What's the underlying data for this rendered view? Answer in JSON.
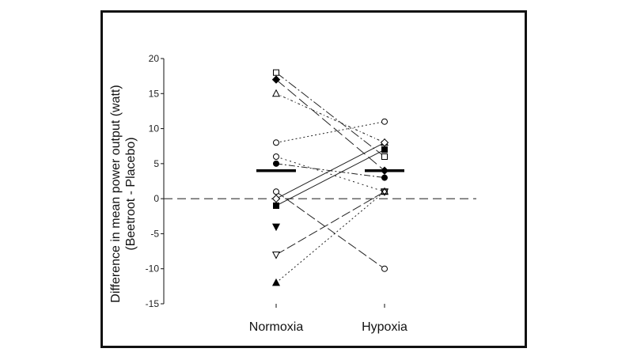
{
  "chart_data": {
    "type": "scatter",
    "ylabel_line1": "Difference in mean power output (watt)",
    "ylabel_line2": "(Beetroot - Placebo)",
    "categories": [
      "Normoxia",
      "Hypoxia"
    ],
    "ylim": [
      -15,
      20
    ],
    "yticks": [
      "20",
      "15",
      "10",
      "5",
      "0",
      "-5",
      "-10",
      "-15"
    ],
    "reference_line": 0,
    "means": [
      4,
      4
    ],
    "series": [
      {
        "marker": "open-square",
        "dash": "12,3,2,3",
        "values": [
          18,
          6
        ]
      },
      {
        "marker": "filled-diamond",
        "dash": "14,5",
        "values": [
          17,
          4
        ]
      },
      {
        "marker": "open-triangle-up",
        "dash": "3,3,1,3",
        "values": [
          15,
          8
        ]
      },
      {
        "marker": "open-circle",
        "dash": "2,3",
        "values": [
          8,
          11
        ]
      },
      {
        "marker": "open-circle",
        "dash": "2,4",
        "values": [
          6,
          1
        ]
      },
      {
        "marker": "filled-circle",
        "dash": "8,3,2,3",
        "values": [
          5,
          3
        ]
      },
      {
        "marker": "open-diamond",
        "dash": "",
        "values": [
          0,
          8
        ]
      },
      {
        "marker": "filled-square",
        "dash": "",
        "values": [
          -1,
          7
        ]
      },
      {
        "marker": "filled-triangle-down",
        "dash": null,
        "values": [
          -4,
          null
        ]
      },
      {
        "marker": "open-triangle-down",
        "dash": "12,4",
        "values": [
          -8,
          1
        ]
      },
      {
        "marker": "filled-triangle-up",
        "dash": "2,3",
        "values": [
          -12,
          1
        ]
      },
      {
        "marker": "open-circle",
        "dash": "12,4",
        "values": [
          1,
          -10
        ]
      },
      {
        "marker": "open-star",
        "dash": null,
        "values": [
          null,
          1
        ]
      }
    ]
  }
}
